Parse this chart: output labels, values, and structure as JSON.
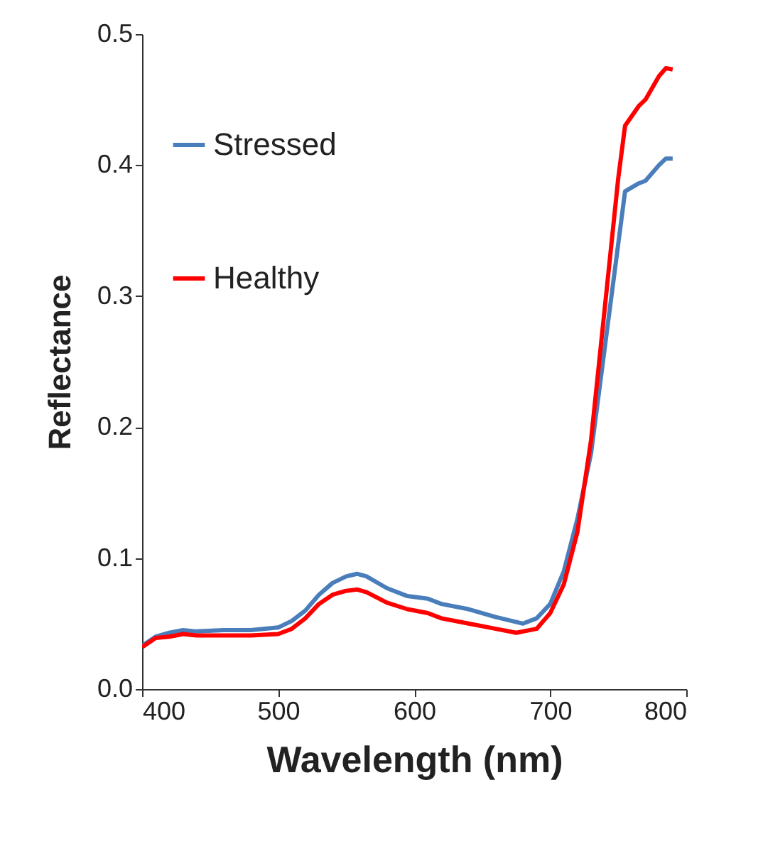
{
  "chart_data": {
    "type": "line",
    "xlabel": "Wavelength (nm)",
    "ylabel": "Reflectance",
    "xlim": [
      400,
      800
    ],
    "xticks": [
      400,
      500,
      600,
      700,
      800
    ],
    "ylim": [
      0,
      0.5
    ],
    "yticks": [
      {
        "value": 0,
        "label": "0.0"
      },
      0.1,
      0.2,
      0.3,
      0.4,
      0.5
    ],
    "grid": false,
    "legend": "top left",
    "line_style": "solid",
    "marker": "none",
    "series": [
      {
        "name": "Stressed",
        "color": "#4a7ebb",
        "x": [
          400,
          410,
          420,
          430,
          440,
          460,
          480,
          500,
          510,
          520,
          530,
          540,
          550,
          558,
          565,
          580,
          595,
          610,
          620,
          640,
          660,
          680,
          690,
          700,
          710,
          720,
          730,
          740,
          750,
          755,
          765,
          770,
          780,
          785,
          790
        ],
        "values": [
          0.033,
          0.04,
          0.043,
          0.045,
          0.044,
          0.045,
          0.045,
          0.047,
          0.052,
          0.06,
          0.072,
          0.081,
          0.086,
          0.088,
          0.086,
          0.077,
          0.071,
          0.069,
          0.065,
          0.061,
          0.055,
          0.05,
          0.054,
          0.065,
          0.09,
          0.13,
          0.18,
          0.26,
          0.34,
          0.38,
          0.386,
          0.388,
          0.4,
          0.405,
          0.405
        ]
      },
      {
        "name": "Healthy",
        "color": "#ff0000",
        "x": [
          400,
          410,
          420,
          430,
          440,
          480,
          500,
          510,
          520,
          530,
          540,
          550,
          558,
          565,
          580,
          595,
          610,
          620,
          640,
          660,
          675,
          690,
          700,
          710,
          720,
          730,
          740,
          750,
          755,
          765,
          770,
          780,
          785,
          790
        ],
        "values": [
          0.032,
          0.039,
          0.04,
          0.042,
          0.041,
          0.041,
          0.042,
          0.046,
          0.054,
          0.065,
          0.072,
          0.075,
          0.076,
          0.074,
          0.066,
          0.061,
          0.058,
          0.054,
          0.05,
          0.046,
          0.043,
          0.046,
          0.058,
          0.08,
          0.12,
          0.19,
          0.29,
          0.39,
          0.43,
          0.445,
          0.45,
          0.468,
          0.474,
          0.473
        ]
      }
    ]
  }
}
